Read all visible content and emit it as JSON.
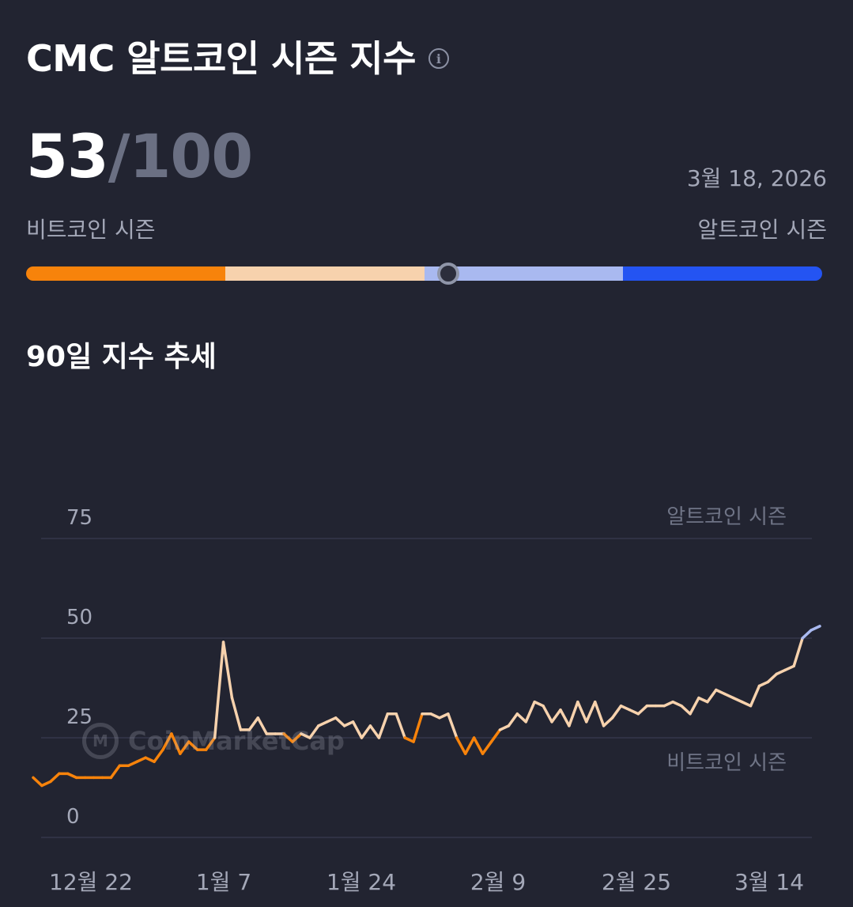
{
  "header": {
    "title": "CMC 알트코인 시즌 지수",
    "info_icon": "info-circle-icon"
  },
  "score": {
    "value": "53",
    "separator": "/",
    "max": "100",
    "date": "3월 18, 2026"
  },
  "meter": {
    "left_label": "비트코인 시즌",
    "right_label": "알트코인 시즌",
    "position": 53,
    "colors": [
      "#f7830b",
      "#f7d2ad",
      "#a9b9f0",
      "#2454f2"
    ]
  },
  "trend": {
    "title": "90일 지수 추세"
  },
  "watermark": {
    "text": "CoinMarketCap"
  },
  "chart_data": {
    "type": "line",
    "x_tick_labels": [
      "12월 22",
      "1월 7",
      "1월 24",
      "2월 9",
      "2월 25",
      "3월 14"
    ],
    "y_ticks": [
      0,
      25,
      50,
      75
    ],
    "ylim": [
      0,
      75
    ],
    "annotations": {
      "upper": "알트코인 시즌",
      "lower": "비트코인 시즌"
    },
    "grid": true,
    "series_colors": {
      "bitcoin": "#f7830b",
      "neutral": "#f7d2ad",
      "altcoin": "#a9b9f0"
    },
    "values": [
      15,
      13,
      14,
      16,
      16,
      15,
      15,
      15,
      15,
      15,
      18,
      18,
      19,
      20,
      19,
      22,
      26,
      21,
      24,
      22,
      22,
      25,
      49,
      35,
      27,
      27,
      30,
      26,
      26,
      26,
      24,
      26,
      25,
      28,
      29,
      30,
      28,
      29,
      25,
      28,
      25,
      31,
      31,
      25,
      24,
      31,
      31,
      30,
      31,
      25,
      21,
      25,
      21,
      24,
      27,
      28,
      31,
      29,
      34,
      33,
      29,
      32,
      28,
      34,
      29,
      34,
      28,
      30,
      33,
      32,
      31,
      33,
      33,
      33,
      34,
      33,
      31,
      35,
      34,
      37,
      36,
      35,
      34,
      33,
      38,
      39,
      41,
      42,
      43,
      50,
      52,
      53
    ]
  }
}
